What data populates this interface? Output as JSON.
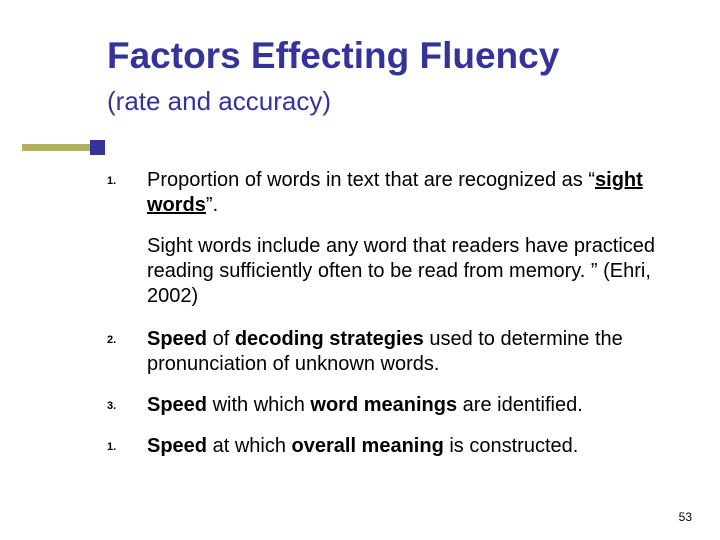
{
  "title": "Factors Effecting Fluency",
  "subtitle": "(rate and accuracy)",
  "accent_bar_color": "#b0b060",
  "accent_square_color": "#333399",
  "title_color": "#333399",
  "title_fontsize": 37,
  "subtitle_fontsize": 26,
  "body_fontsize": 20,
  "num_fontsize": 11,
  "items": [
    {
      "num": "1.",
      "pre": "Proportion of words in text that are recognized as “",
      "bold_u": "sight words",
      "post": "”."
    },
    {
      "num": "2.",
      "bold1": "Speed",
      "mid1": " of ",
      "bold2": "decoding strategies",
      "post": " used to determine the pronunciation of unknown words."
    },
    {
      "num": "3.",
      "bold1": "Speed",
      "mid1": " with which ",
      "bold2": "word meanings",
      "post": " are identified."
    },
    {
      "num": "1.",
      "bold1": "Speed",
      "mid1": " at which ",
      "bold2": "overall meaning",
      "post": " is constructed."
    }
  ],
  "paragraph": "Sight words include any word that readers have practiced reading sufficiently often to be read from memory. ” (Ehri, 2002)",
  "page_number": "53"
}
